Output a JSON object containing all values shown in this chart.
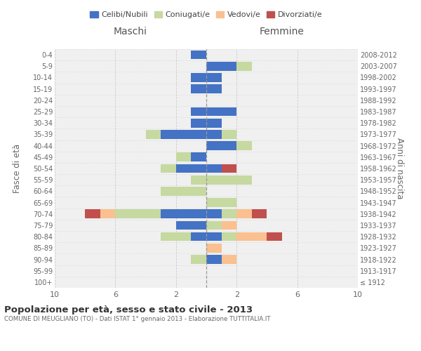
{
  "age_groups": [
    "100+",
    "95-99",
    "90-94",
    "85-89",
    "80-84",
    "75-79",
    "70-74",
    "65-69",
    "60-64",
    "55-59",
    "50-54",
    "45-49",
    "40-44",
    "35-39",
    "30-34",
    "25-29",
    "20-24",
    "15-19",
    "10-14",
    "5-9",
    "0-4"
  ],
  "birth_years": [
    "≤ 1912",
    "1913-1917",
    "1918-1922",
    "1923-1927",
    "1928-1932",
    "1933-1937",
    "1938-1942",
    "1943-1947",
    "1948-1952",
    "1953-1957",
    "1958-1962",
    "1963-1967",
    "1968-1972",
    "1973-1977",
    "1978-1982",
    "1983-1987",
    "1988-1992",
    "1993-1997",
    "1998-2002",
    "2003-2007",
    "2008-2012"
  ],
  "maschi": {
    "celibi": [
      0,
      0,
      0,
      0,
      1,
      2,
      3,
      0,
      0,
      0,
      2,
      1,
      0,
      3,
      1,
      1,
      0,
      1,
      1,
      0,
      1
    ],
    "coniugati": [
      0,
      0,
      1,
      0,
      2,
      0,
      3,
      0,
      3,
      1,
      1,
      1,
      0,
      1,
      0,
      0,
      0,
      0,
      0,
      0,
      0
    ],
    "vedovi": [
      0,
      0,
      0,
      0,
      0,
      0,
      1,
      0,
      0,
      0,
      0,
      0,
      0,
      0,
      0,
      0,
      0,
      0,
      0,
      0,
      0
    ],
    "divorziati": [
      0,
      0,
      0,
      0,
      0,
      0,
      1,
      0,
      0,
      0,
      0,
      0,
      0,
      0,
      0,
      0,
      0,
      0,
      0,
      0,
      0
    ]
  },
  "femmine": {
    "nubili": [
      0,
      0,
      1,
      0,
      1,
      0,
      1,
      0,
      0,
      0,
      1,
      0,
      2,
      1,
      1,
      2,
      0,
      1,
      1,
      2,
      0
    ],
    "coniugate": [
      0,
      0,
      0,
      0,
      1,
      1,
      1,
      2,
      0,
      3,
      0,
      0,
      1,
      1,
      0,
      0,
      0,
      0,
      0,
      1,
      0
    ],
    "vedove": [
      0,
      0,
      1,
      1,
      2,
      1,
      1,
      0,
      0,
      0,
      0,
      0,
      0,
      0,
      0,
      0,
      0,
      0,
      0,
      0,
      0
    ],
    "divorziate": [
      0,
      0,
      0,
      0,
      1,
      0,
      1,
      0,
      0,
      0,
      1,
      0,
      0,
      0,
      0,
      0,
      0,
      0,
      0,
      0,
      0
    ]
  },
  "colors": {
    "celibi_nubili": "#4472C4",
    "coniugati": "#C6D9A0",
    "vedovi": "#FAC090",
    "divorziati": "#C0504D"
  },
  "xlim": 10,
  "title": "Popolazione per età, sesso e stato civile - 2013",
  "subtitle": "COMUNE DI MEUGLIANO (TO) - Dati ISTAT 1° gennaio 2013 - Elaborazione TUTTITALIA.IT",
  "xlabel_left": "Maschi",
  "xlabel_right": "Femmine",
  "ylabel_left": "Fasce di età",
  "ylabel_right": "Anni di nascita",
  "legend_labels": [
    "Celibi/Nubili",
    "Coniugati/e",
    "Vedovi/e",
    "Divorziati/e"
  ],
  "bg_color": "#ffffff",
  "grid_color": "#cccccc",
  "xticks": [
    10,
    6,
    2,
    2,
    6,
    10
  ]
}
